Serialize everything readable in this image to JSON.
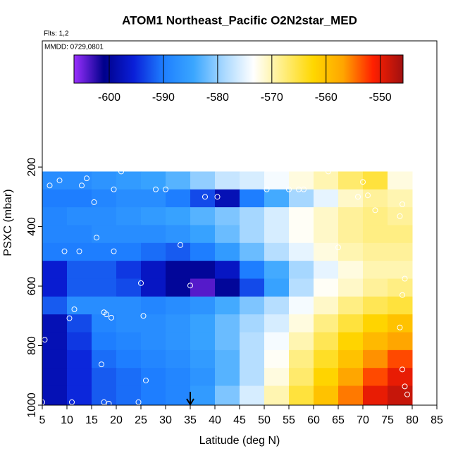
{
  "chart_data": {
    "type": "heatmap",
    "title": "ATOM1 Northeast_Pacific O2N2star_MED",
    "subtitle": "Flts: 1,2",
    "annotation": "MMDD: 0729,0801",
    "x_label": "Latitude (deg N)",
    "y_label": "PSXC (mbar)",
    "xlim": [
      5,
      85
    ],
    "xticks": [
      5,
      10,
      15,
      20,
      25,
      30,
      35,
      40,
      45,
      50,
      55,
      60,
      65,
      70,
      75,
      80,
      85
    ],
    "ylim": [
      1000,
      -224
    ],
    "yticks": [
      200,
      400,
      600,
      800,
      1000
    ],
    "y_reversed": true,
    "colorlim": [
      -606.5,
      -545.8
    ],
    "colorticks": [
      -600,
      -590,
      -580,
      -570,
      -560,
      -550
    ],
    "colors": [
      "#9b30ff",
      "#00008b",
      "#0a1fd8",
      "#1e7fff",
      "#3aa6ff",
      "#a8d8ff",
      "#ffffff",
      "#ffee80",
      "#ffd700",
      "#ffa500",
      "#ff2000",
      "#a01010"
    ],
    "marker_x": 35,
    "x_edges": [
      5,
      10,
      15,
      20,
      25,
      30,
      35,
      40,
      45,
      50,
      55,
      60,
      65,
      70,
      75,
      80
    ],
    "y_edges": [
      215,
      275,
      335,
      395,
      455,
      515,
      575,
      635,
      695,
      755,
      815,
      875,
      935,
      1000
    ],
    "values": [
      [
        -588,
        -588,
        -587,
        -586,
        -585,
        -583,
        -580,
        -577,
        -576,
        -574,
        -572,
        -570,
        -567,
        -565,
        -572
      ],
      [
        -590,
        -590,
        -589,
        -588,
        -588,
        -590,
        -593,
        -598,
        -590,
        -584,
        -579,
        -575,
        -571,
        -569,
        -570
      ],
      [
        -589,
        -588,
        -588,
        -587,
        -586,
        -585,
        -583,
        -581,
        -579,
        -576,
        -573,
        -571,
        -569,
        -568,
        -569
      ],
      [
        -589,
        -589,
        -588,
        -588,
        -588,
        -587,
        -585,
        -582,
        -579,
        -576,
        -573,
        -571,
        -569,
        -568,
        -568
      ],
      [
        -590,
        -590,
        -590,
        -590,
        -591,
        -592,
        -590,
        -586,
        -582,
        -578,
        -575,
        -572,
        -570,
        -569,
        -569
      ],
      [
        -596,
        -592,
        -592,
        -594,
        -597,
        -600,
        -600,
        -597,
        -590,
        -584,
        -579,
        -575,
        -572,
        -570,
        -570
      ],
      [
        -596,
        -592,
        -592,
        -593,
        -597,
        -600,
        -604,
        -600,
        -593,
        -585,
        -578,
        -573,
        -571,
        -569,
        -568
      ],
      [
        -592,
        -588,
        -588,
        -588,
        -589,
        -588,
        -587,
        -584,
        -581,
        -578,
        -574,
        -571,
        -568,
        -566,
        -565
      ],
      [
        -598,
        -593,
        -589,
        -588,
        -588,
        -587,
        -585,
        -582,
        -579,
        -576,
        -572,
        -568,
        -565,
        -562,
        -560
      ],
      [
        -598,
        -594,
        -590,
        -589,
        -588,
        -587,
        -585,
        -582,
        -578,
        -574,
        -570,
        -566,
        -562,
        -559,
        -557
      ],
      [
        -598,
        -595,
        -591,
        -590,
        -589,
        -588,
        -586,
        -583,
        -578,
        -573,
        -568,
        -564,
        -560,
        -556,
        -553
      ],
      [
        -598,
        -595,
        -592,
        -591,
        -590,
        -589,
        -587,
        -583,
        -578,
        -572,
        -567,
        -562,
        -557,
        -553,
        -550
      ],
      [
        -598,
        -595,
        -592,
        -591,
        -590,
        -589,
        -586,
        -581,
        -576,
        -570,
        -565,
        -560,
        -555,
        -550,
        -548
      ]
    ],
    "points": {
      "x": [
        8.5,
        14,
        6.5,
        13,
        21,
        19.5,
        28,
        30,
        38,
        40.5,
        50.5,
        55,
        57,
        58,
        63,
        70,
        71,
        72.5,
        69,
        15.5,
        78,
        77.5,
        16,
        9.5,
        12.5,
        19.5,
        33,
        65,
        25,
        35,
        78.5,
        78,
        11.5,
        10.5,
        17.5,
        18,
        19,
        25.5,
        77.5,
        5.5,
        17,
        26,
        78,
        78.5,
        79,
        5,
        11,
        17.5,
        18.5,
        24.5
      ],
      "y": [
        245,
        238,
        262,
        262,
        215,
        275,
        275,
        275,
        300,
        300,
        275,
        275,
        275,
        275,
        215,
        250,
        295,
        345,
        300,
        318,
        325,
        365,
        437,
        483,
        483,
        483,
        462,
        470,
        590,
        598,
        575,
        630,
        678,
        708,
        688,
        695,
        706,
        700,
        739,
        780,
        863,
        917,
        880,
        937,
        964,
        990,
        990,
        990,
        995,
        990
      ]
    }
  }
}
